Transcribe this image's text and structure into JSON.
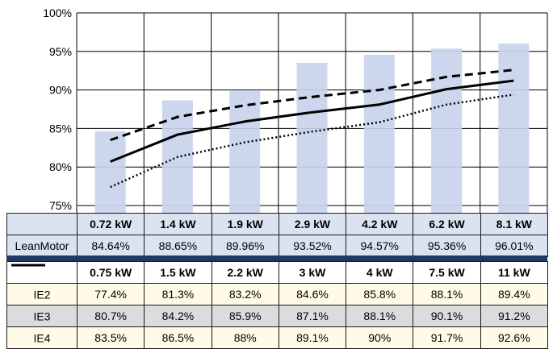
{
  "chart_data": {
    "type": "bar+line",
    "ylim": [
      75,
      100
    ],
    "yticks": [
      75,
      80,
      85,
      90,
      95,
      100
    ],
    "ytick_labels": [
      "75%",
      "80%",
      "85%",
      "90%",
      "95%",
      "100%"
    ],
    "leanmotor": {
      "name": "LeanMotor",
      "categories": [
        "0.72 kW",
        "1.4 kW",
        "1.9 kW",
        "2.9 kW",
        "4.2 kW",
        "6.2 kW",
        "8.1 kW"
      ],
      "values": [
        84.64,
        88.65,
        89.96,
        93.52,
        94.57,
        95.36,
        96.01
      ],
      "value_labels": [
        "84.64%",
        "88.65%",
        "89.96%",
        "93.52%",
        "94.57%",
        "95.36%",
        "96.01%"
      ],
      "color": "#ccd6ec"
    },
    "ie_categories": [
      "0.75 kW",
      "1.5 kW",
      "2.2 kW",
      "3 kW",
      "4 kW",
      "7.5 kW",
      "11 kW"
    ],
    "series": [
      {
        "name": "IE2",
        "style": "dotted",
        "values": [
          77.4,
          81.3,
          83.2,
          84.6,
          85.8,
          88.1,
          89.4
        ],
        "value_labels": [
          "77.4%",
          "81.3%",
          "83.2%",
          "84.6%",
          "85.8%",
          "88.1%",
          "89.4%"
        ]
      },
      {
        "name": "IE3",
        "style": "solid",
        "values": [
          80.7,
          84.2,
          85.9,
          87.1,
          88.1,
          90.1,
          91.2
        ],
        "value_labels": [
          "80.7%",
          "84.2%",
          "85.9%",
          "87.1%",
          "88.1%",
          "90.1%",
          "91.2%"
        ]
      },
      {
        "name": "IE4",
        "style": "dashed",
        "values": [
          83.5,
          86.5,
          88,
          89.1,
          90,
          91.7,
          92.6
        ],
        "value_labels": [
          "83.5%",
          "86.5%",
          "88%",
          "89.1%",
          "90%",
          "91.7%",
          "92.6%"
        ]
      }
    ],
    "grid": true,
    "colors": {
      "bar": "#ccd6ec",
      "divider": "#1f3864"
    }
  }
}
